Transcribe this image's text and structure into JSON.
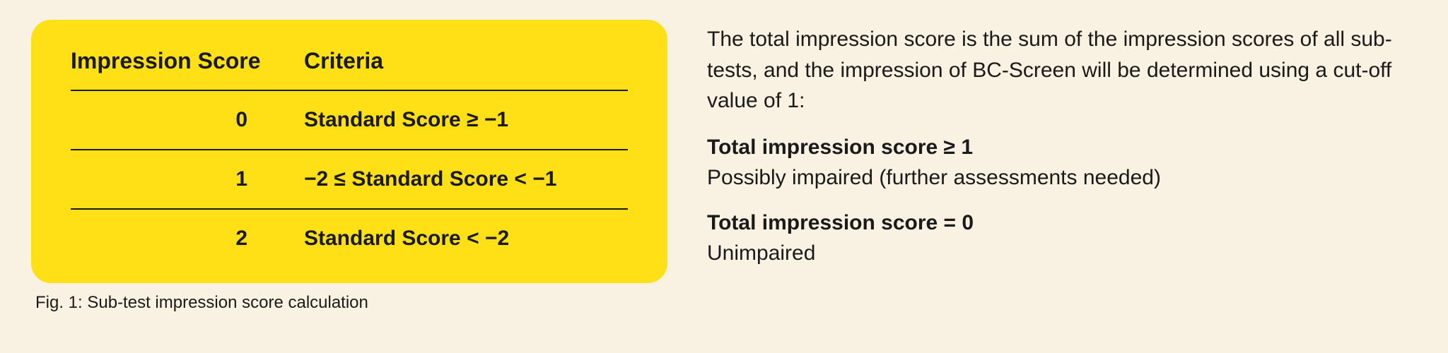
{
  "table": {
    "headers": {
      "score": "Impression Score",
      "criteria": "Criteria"
    },
    "rows": [
      {
        "score": "0",
        "criteria": "Standard Score ≥ −1"
      },
      {
        "score": "1",
        "criteria": "−2 ≤ Standard Score < −1"
      },
      {
        "score": "2",
        "criteria": "Standard Score < −2"
      }
    ],
    "background_color": "#ffe016",
    "border_color": "#1a1a1a"
  },
  "caption": "Fig. 1: Sub-test impression score calculation",
  "paragraph": "The total impression score is the sum of the impression scores of all sub-tests, and the impression of BC-Screen will be determined using a cut-off value of 1:",
  "blocks": [
    {
      "head": "Total impression score ≥ 1",
      "desc": "Possibly impaired (further assessments needed)"
    },
    {
      "head": "Total impression score = 0",
      "desc": "Unimpaired"
    }
  ],
  "page_background": "#f9f1e1",
  "text_color": "#1a1a1a"
}
